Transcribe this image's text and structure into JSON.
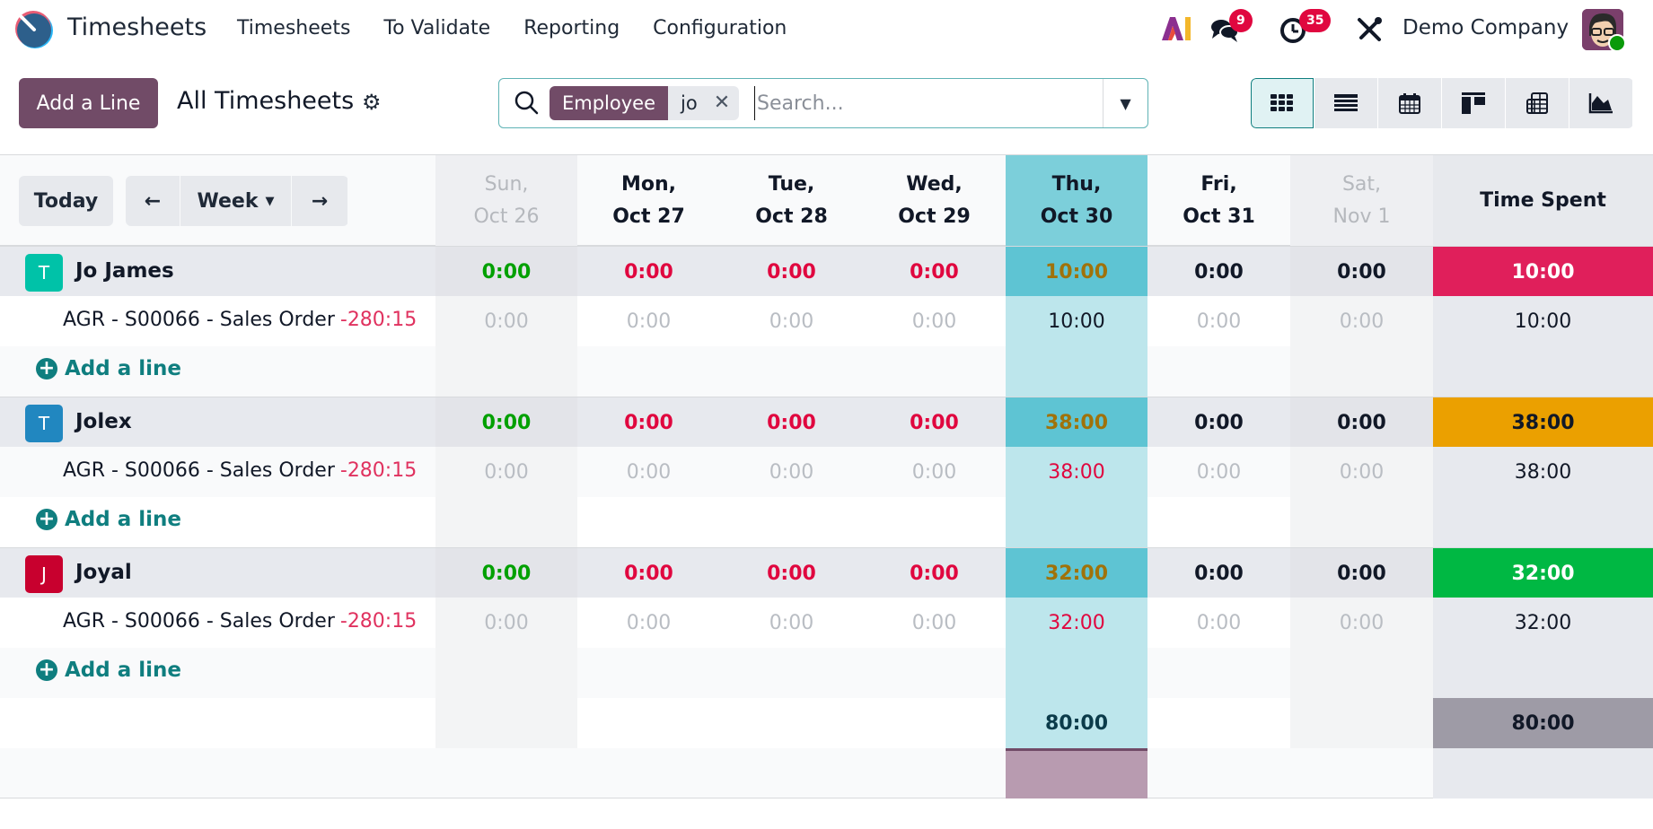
{
  "navbar": {
    "app_name": "Timesheets",
    "menu": [
      "Timesheets",
      "To Validate",
      "Reporting",
      "Configuration"
    ],
    "ai_label": "AI",
    "messages_badge": "9",
    "activities_badge": "35",
    "company": "Demo Company"
  },
  "control": {
    "add_button": "Add a Line",
    "title": "All Timesheets",
    "search": {
      "facet_label": "Employee",
      "facet_value": "jo",
      "placeholder": "Search..."
    },
    "views": [
      "grid",
      "list",
      "calendar",
      "kanban",
      "pivot",
      "graph"
    ],
    "active_view": "grid"
  },
  "grid": {
    "today_label": "Today",
    "range_label": "Week",
    "columns": [
      {
        "day": "Sun,",
        "date": "Oct 26"
      },
      {
        "day": "Mon,",
        "date": "Oct 27"
      },
      {
        "day": "Tue,",
        "date": "Oct 28"
      },
      {
        "day": "Wed,",
        "date": "Oct 29"
      },
      {
        "day": "Thu,",
        "date": "Oct 30"
      },
      {
        "day": "Fri,",
        "date": "Oct 31"
      },
      {
        "day": "Sat,",
        "date": "Nov 1"
      }
    ],
    "total_header": "Time Spent",
    "add_line_label": "Add a line",
    "groups": [
      {
        "employee": "Jo James",
        "initial": "T",
        "avatar_color": "#00c2a8",
        "day_totals": [
          "0:00",
          "0:00",
          "0:00",
          "0:00",
          "10:00",
          "0:00",
          "0:00"
        ],
        "total": "10:00",
        "total_color": "#e01f5b",
        "line": {
          "name": "AGR - S00066 - Sales Order",
          "remaining": "-280:15",
          "values": [
            "0:00",
            "0:00",
            "0:00",
            "0:00",
            "10:00",
            "0:00",
            "0:00"
          ],
          "total": "10:00"
        }
      },
      {
        "employee": "Jolex",
        "initial": "T",
        "avatar_color": "#2187c0",
        "day_totals": [
          "0:00",
          "0:00",
          "0:00",
          "0:00",
          "38:00",
          "0:00",
          "0:00"
        ],
        "total": "38:00",
        "total_color": "#eba000",
        "line": {
          "name": "AGR - S00066 - Sales Order",
          "remaining": "-280:15",
          "values": [
            "0:00",
            "0:00",
            "0:00",
            "0:00",
            "38:00",
            "0:00",
            "0:00"
          ],
          "total": "38:00"
        }
      },
      {
        "employee": "Joyal",
        "initial": "J",
        "avatar_color": "#c8002e",
        "day_totals": [
          "0:00",
          "0:00",
          "0:00",
          "0:00",
          "32:00",
          "0:00",
          "0:00"
        ],
        "total": "32:00",
        "total_color": "#00b843",
        "line": {
          "name": "AGR - S00066 - Sales Order",
          "remaining": "-280:15",
          "values": [
            "0:00",
            "0:00",
            "0:00",
            "0:00",
            "32:00",
            "0:00",
            "0:00"
          ],
          "total": "32:00"
        }
      }
    ],
    "footer": {
      "thu_total": "80:00",
      "grand_total": "80:00"
    }
  }
}
